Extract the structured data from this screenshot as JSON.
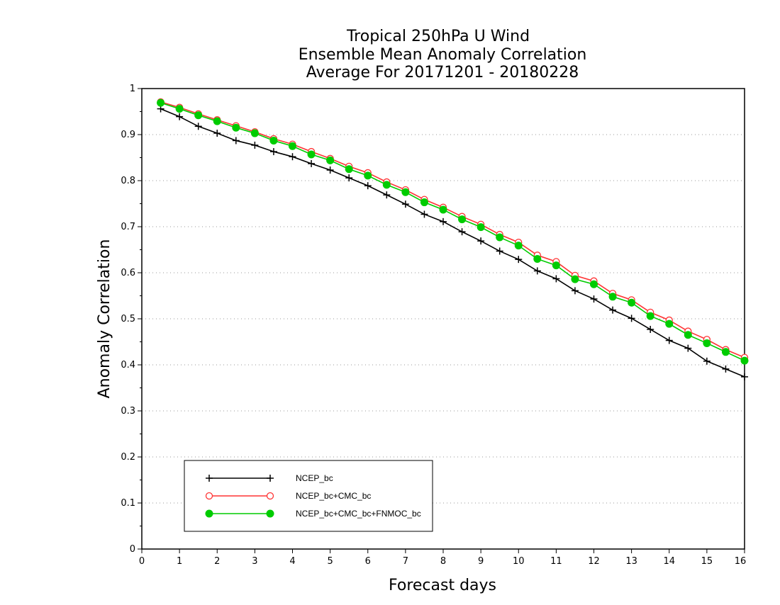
{
  "chart_data": {
    "type": "line",
    "title_lines": [
      "Tropical 250hPa U Wind",
      "Ensemble Mean Anomaly Correlation",
      "Average For 20171201 - 20180228"
    ],
    "xlabel": "Forecast days",
    "ylabel": "Anomaly Correlation",
    "xlim": [
      0,
      16
    ],
    "ylim": [
      0,
      1
    ],
    "x_ticks": [
      "0",
      "1",
      "2",
      "3",
      "4",
      "5",
      "6",
      "7",
      "8",
      "9",
      "10",
      "11",
      "12",
      "13",
      "14",
      "15",
      "16"
    ],
    "y_ticks": [
      "0",
      "0.1",
      "0.2",
      "0.3",
      "0.4",
      "0.5",
      "0.6",
      "0.7",
      "0.8",
      "0.9",
      "1"
    ],
    "grid": "horizontal dotted",
    "legend_position": "bottom-left",
    "x": [
      0.5,
      1,
      1.5,
      2,
      2.5,
      3,
      3.5,
      4,
      4.5,
      5,
      5.5,
      6,
      6.5,
      7,
      7.5,
      8,
      8.5,
      9,
      9.5,
      10,
      10.5,
      11,
      11.5,
      12,
      12.5,
      13,
      13.5,
      14,
      14.5,
      15,
      15.5,
      16
    ],
    "series": [
      {
        "name": "NCEP_bc",
        "color": "#000000",
        "marker": "plus",
        "values": [
          0.956,
          0.939,
          0.918,
          0.903,
          0.887,
          0.877,
          0.863,
          0.852,
          0.837,
          0.823,
          0.806,
          0.789,
          0.769,
          0.749,
          0.727,
          0.711,
          0.689,
          0.669,
          0.647,
          0.629,
          0.604,
          0.587,
          0.561,
          0.543,
          0.519,
          0.501,
          0.477,
          0.453,
          0.436,
          0.408,
          0.391,
          0.374
        ]
      },
      {
        "name": "NCEP_bc+CMC_bc",
        "color": "#ff3333",
        "marker": "open-circle",
        "values": [
          0.971,
          0.959,
          0.945,
          0.932,
          0.919,
          0.906,
          0.891,
          0.879,
          0.863,
          0.848,
          0.831,
          0.817,
          0.797,
          0.78,
          0.759,
          0.742,
          0.722,
          0.705,
          0.683,
          0.666,
          0.638,
          0.624,
          0.594,
          0.582,
          0.555,
          0.541,
          0.514,
          0.497,
          0.473,
          0.455,
          0.433,
          0.416
        ]
      },
      {
        "name": "NCEP_bc+CMC_bc+FNMOC_bc",
        "color": "#00cc00",
        "marker": "filled-circle",
        "values": [
          0.969,
          0.956,
          0.942,
          0.929,
          0.915,
          0.903,
          0.887,
          0.875,
          0.857,
          0.844,
          0.825,
          0.811,
          0.791,
          0.775,
          0.753,
          0.737,
          0.716,
          0.699,
          0.677,
          0.659,
          0.63,
          0.616,
          0.586,
          0.575,
          0.548,
          0.535,
          0.506,
          0.489,
          0.465,
          0.447,
          0.428,
          0.409
        ]
      }
    ]
  }
}
